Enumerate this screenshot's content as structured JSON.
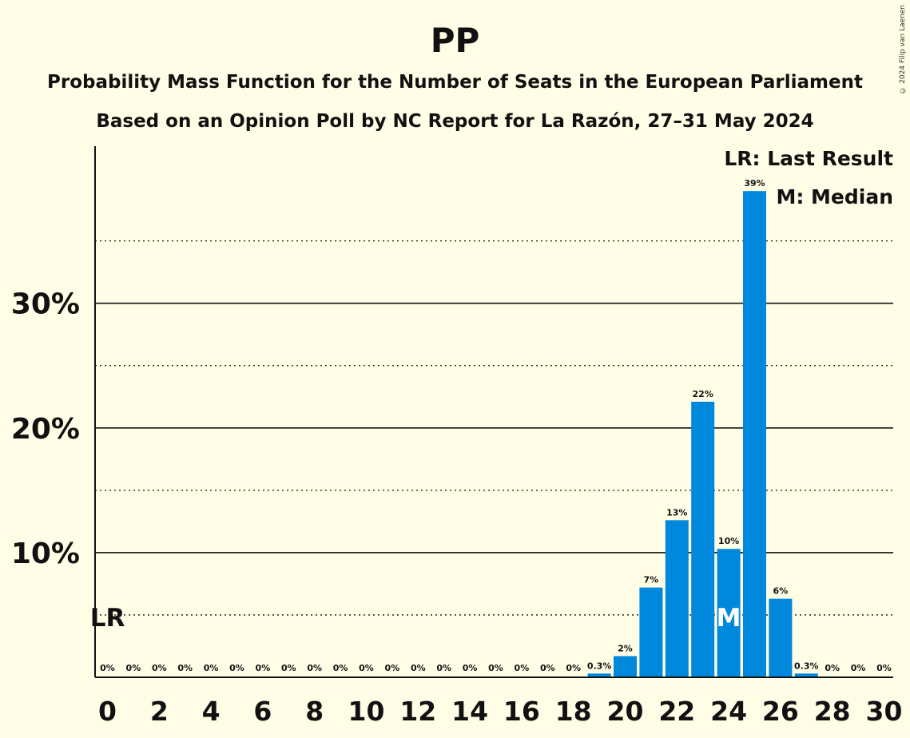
{
  "title": "PP",
  "subtitle1": "Probability Mass Function for the Number of Seats in the European Parliament",
  "subtitle2": "Based on an Opinion Poll by NC Report for La Razón, 27–31 May 2024",
  "copyright": "© 2024 Filip van Laenen",
  "legend": {
    "lr": "LR: Last Result",
    "m": "M: Median"
  },
  "colors": {
    "bar": "#0088DD",
    "background": "#FFFDE6",
    "text": "#111111"
  },
  "chart_data": {
    "type": "bar",
    "title": "PP",
    "xlabel": "",
    "ylabel": "",
    "x": [
      0,
      1,
      2,
      3,
      4,
      5,
      6,
      7,
      8,
      9,
      10,
      11,
      12,
      13,
      14,
      15,
      16,
      17,
      18,
      19,
      20,
      21,
      22,
      23,
      24,
      25,
      26,
      27,
      28,
      29,
      30
    ],
    "values": [
      0,
      0,
      0,
      0,
      0,
      0,
      0,
      0,
      0,
      0,
      0,
      0,
      0,
      0,
      0,
      0,
      0,
      0,
      0,
      0.3,
      1.7,
      7.2,
      12.6,
      22.1,
      10.3,
      39.0,
      6.3,
      0.3,
      0,
      0,
      0
    ],
    "data_labels": [
      "0%",
      "0%",
      "0%",
      "0%",
      "0%",
      "0%",
      "0%",
      "0%",
      "0%",
      "0%",
      "0%",
      "0%",
      "0%",
      "0%",
      "0%",
      "0%",
      "0%",
      "0%",
      "0%",
      "0.3%",
      "2%",
      "7%",
      "13%",
      "22%",
      "10%",
      "39%",
      "6%",
      "0.3%",
      "0%",
      "0%",
      "0%"
    ],
    "x_ticks": [
      "0",
      "2",
      "4",
      "6",
      "8",
      "10",
      "12",
      "14",
      "16",
      "18",
      "20",
      "22",
      "24",
      "26",
      "28",
      "30"
    ],
    "y_ticks": [
      {
        "value": 10,
        "label": "10%"
      },
      {
        "value": 20,
        "label": "20%"
      },
      {
        "value": 30,
        "label": "30%"
      }
    ],
    "minor_gridlines": [
      5,
      15,
      25,
      35
    ],
    "ylim": [
      0,
      42
    ],
    "last_result_seat": 0,
    "last_result_marker": "LR",
    "median_seat": 24,
    "median_marker": "M"
  }
}
